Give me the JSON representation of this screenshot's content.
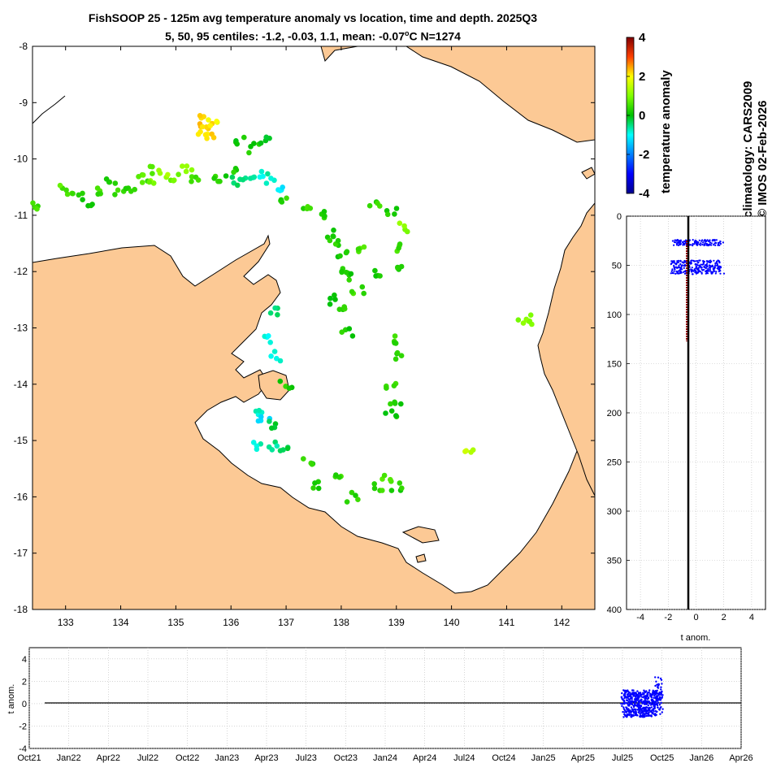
{
  "title_line1": "FishSOOP 25 - 125m avg temperature anomaly vs location, time and depth. 2025Q3",
  "title_line2": "5, 50, 95 centiles: -1.2, -0.03, 1.1, mean: -0.07",
  "title_unit": "o",
  "title_tail": "C N=1274",
  "colors": {
    "land": "#fcc995",
    "coast": "#000000",
    "obs": "#0000ff",
    "mean_line": "#8b0000"
  },
  "colorbar": {
    "label": "temperature anomaly",
    "ticks": [
      "4",
      "2",
      "0",
      "-2",
      "-4"
    ],
    "range": [
      -4,
      4
    ]
  },
  "side_text": {
    "climatology": "climatology: CARS2009",
    "credit": "© IMOS 02-Feb-2026"
  },
  "map": {
    "lon_range": [
      132.4,
      142.6
    ],
    "lat_range": [
      -18,
      -8
    ],
    "lon_ticks": [
      "133",
      "134",
      "135",
      "136",
      "137",
      "138",
      "139",
      "140",
      "141",
      "142"
    ],
    "lat_ticks": [
      "-8",
      "-9",
      "-10",
      "-11",
      "-12",
      "-13",
      "-14",
      "-15",
      "-16",
      "-17",
      "-18"
    ]
  },
  "depth_panel": {
    "ylim": [
      0,
      400
    ],
    "xlim": [
      -5,
      5
    ],
    "y_ticks": [
      "0",
      "50",
      "100",
      "150",
      "200",
      "250",
      "300",
      "350",
      "400"
    ],
    "x_ticks": [
      "-4",
      "-2",
      "0",
      "2",
      "4"
    ],
    "xlabel": "t anom."
  },
  "time_panel": {
    "ylim": [
      -4,
      5
    ],
    "y_ticks": [
      "4",
      "2",
      "0",
      "-2",
      "-4"
    ],
    "ylabel": "t anom.",
    "x_ticks": [
      "Oct21",
      "Jan22",
      "Apr22",
      "Jul22",
      "Oct22",
      "Jan23",
      "Apr23",
      "Jul23",
      "Oct23",
      "Jan24",
      "Apr24",
      "Jul24",
      "Oct24",
      "Jan25",
      "Apr25",
      "Jul25",
      "Oct25",
      "Jan26",
      "Apr26"
    ]
  },
  "chart_data": {
    "type": "scatter",
    "title": "FishSOOP 25 - 125m avg temperature anomaly vs location, time and depth. 2025Q3",
    "xlabel": "",
    "ylabel": "",
    "xlim": [
      132.4,
      142.6
    ],
    "ylim": [
      -18,
      -8
    ],
    "color_scale": "temperature anomaly",
    "points": [
      [
        132.5,
        -10.85,
        0.5
      ],
      [
        133.0,
        -10.55,
        0.6
      ],
      [
        133.2,
        -10.6,
        0.4
      ],
      [
        133.4,
        -10.8,
        0.2
      ],
      [
        133.6,
        -10.55,
        0.5
      ],
      [
        133.8,
        -10.4,
        0.3
      ],
      [
        134.0,
        -10.6,
        0.4
      ],
      [
        134.2,
        -10.5,
        0.2
      ],
      [
        134.4,
        -10.35,
        0.6
      ],
      [
        134.5,
        -10.2,
        0.8
      ],
      [
        134.6,
        -10.35,
        1.0
      ],
      [
        134.8,
        -10.25,
        1.2
      ],
      [
        135.0,
        -10.3,
        0.9
      ],
      [
        135.2,
        -10.2,
        1.1
      ],
      [
        135.3,
        -10.4,
        0.4
      ],
      [
        135.45,
        -9.3,
        2.2
      ],
      [
        135.55,
        -9.4,
        2.4
      ],
      [
        135.65,
        -9.35,
        2.0
      ],
      [
        135.5,
        -9.5,
        2.1
      ],
      [
        135.6,
        -9.55,
        2.3
      ],
      [
        135.8,
        -10.35,
        0.3
      ],
      [
        136.0,
        -10.25,
        0.2
      ],
      [
        136.1,
        -10.4,
        -0.4
      ],
      [
        136.3,
        -10.35,
        -0.6
      ],
      [
        136.5,
        -10.3,
        -0.8
      ],
      [
        136.7,
        -10.35,
        -0.7
      ],
      [
        136.9,
        -10.5,
        -1.1
      ],
      [
        136.2,
        -9.7,
        0.1
      ],
      [
        136.4,
        -9.8,
        0.2
      ],
      [
        136.6,
        -9.65,
        0.0
      ],
      [
        137.0,
        -10.7,
        0.3
      ],
      [
        137.4,
        -10.85,
        0.4
      ],
      [
        137.7,
        -11.0,
        0.3
      ],
      [
        137.8,
        -11.3,
        0.2
      ],
      [
        137.9,
        -11.5,
        0.4
      ],
      [
        138.0,
        -11.7,
        0.1
      ],
      [
        138.1,
        -12.0,
        0.3
      ],
      [
        138.2,
        -12.1,
        0.2
      ],
      [
        138.3,
        -12.3,
        0.5
      ],
      [
        138.4,
        -11.6,
        0.6
      ],
      [
        138.6,
        -10.8,
        0.4
      ],
      [
        138.9,
        -10.95,
        0.2
      ],
      [
        139.1,
        -11.2,
        1.0
      ],
      [
        139.0,
        -11.6,
        0.5
      ],
      [
        139.1,
        -11.9,
        0.3
      ],
      [
        138.7,
        -12.0,
        0.2
      ],
      [
        137.8,
        -12.5,
        0.1
      ],
      [
        138.0,
        -12.7,
        0.3
      ],
      [
        138.1,
        -13.1,
        0.2
      ],
      [
        138.9,
        -13.2,
        0.4
      ],
      [
        139.1,
        -13.5,
        0.3
      ],
      [
        138.9,
        -14.0,
        0.5
      ],
      [
        139.0,
        -14.3,
        0.2
      ],
      [
        138.9,
        -14.5,
        0.1
      ],
      [
        141.3,
        -12.9,
        1.0
      ],
      [
        141.4,
        -12.85,
        1.1
      ],
      [
        136.8,
        -12.7,
        -0.5
      ],
      [
        136.7,
        -13.2,
        -1.0
      ],
      [
        136.8,
        -13.5,
        -0.9
      ],
      [
        137.0,
        -14.0,
        0.2
      ],
      [
        136.5,
        -14.5,
        -0.7
      ],
      [
        136.6,
        -14.6,
        -1.2
      ],
      [
        136.7,
        -14.7,
        -0.3
      ],
      [
        136.5,
        -15.1,
        -0.8
      ],
      [
        136.8,
        -15.1,
        -0.6
      ],
      [
        137.0,
        -15.2,
        -0.2
      ],
      [
        137.4,
        -15.4,
        0.3
      ],
      [
        137.6,
        -15.8,
        0.2
      ],
      [
        137.9,
        -15.7,
        0.4
      ],
      [
        138.2,
        -16.0,
        0.3
      ],
      [
        138.7,
        -15.8,
        0.4
      ],
      [
        138.8,
        -15.7,
        0.5
      ],
      [
        139.0,
        -15.8,
        0.3
      ],
      [
        140.3,
        -15.25,
        1.5
      ]
    ]
  }
}
